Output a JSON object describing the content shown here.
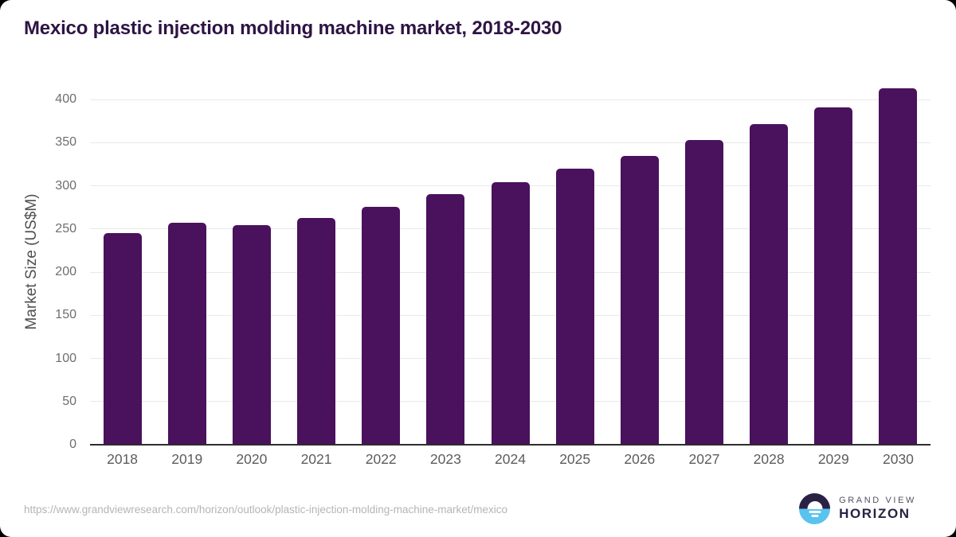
{
  "page": {
    "title": "Mexico plastic injection molding machine market, 2018-2030",
    "source_url": "https://www.grandviewresearch.com/horizon/outlook/plastic-injection-molding-machine-market/mexico",
    "brand": {
      "line1": "GRAND VIEW",
      "line2": "HORIZON"
    }
  },
  "colors": {
    "bar": "#4a115c",
    "title_text": "#2e1444",
    "tick_text": "#6e6e6e",
    "gridline": "#e9e9e9",
    "axis_line": "#2d2d2d",
    "url_text": "#b5b5b5",
    "brand_dark": "#2b2144",
    "brand_blue": "#58c3ef"
  },
  "chart_data": {
    "type": "bar",
    "title": "Mexico plastic injection molding machine market, 2018-2030",
    "categories": [
      "2018",
      "2019",
      "2020",
      "2021",
      "2022",
      "2023",
      "2024",
      "2025",
      "2026",
      "2027",
      "2028",
      "2029",
      "2030"
    ],
    "values": [
      245,
      257,
      254,
      263,
      276,
      290,
      304,
      320,
      335,
      353,
      371,
      391,
      413
    ],
    "xlabel": "",
    "ylabel": "Market Size (US$M)",
    "ylim": [
      0,
      400
    ],
    "ytick_step": 50,
    "grid": true,
    "legend": false,
    "bar_color": "#4a115c"
  }
}
